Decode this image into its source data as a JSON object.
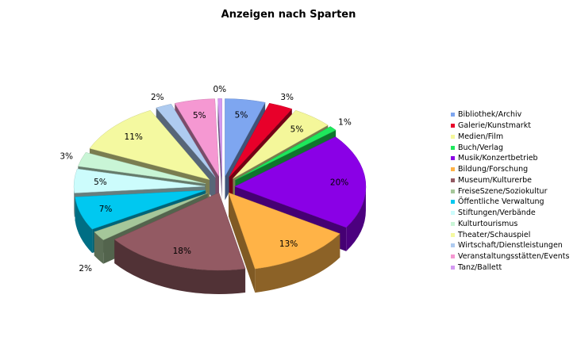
{
  "chart_data": {
    "type": "pie",
    "title": "Anzeigen nach Sparten",
    "legend_position": "right",
    "slices": [
      {
        "label": "Bibliothek/Archiv",
        "value": 5,
        "display": "5%",
        "color": "#7ea6f0"
      },
      {
        "label": "Galerie/Kunstmarkt",
        "value": 3,
        "display": "3%",
        "color": "#e8002a"
      },
      {
        "label": "Medien/Film",
        "value": 5,
        "display": "5%",
        "color": "#f4f79a"
      },
      {
        "label": "Buch/Verlag",
        "value": 1,
        "display": "1%",
        "color": "#1ee85c"
      },
      {
        "label": "Musik/Konzertbetrieb",
        "value": 20,
        "display": "20%",
        "color": "#8a00e6"
      },
      {
        "label": "Bildung/Forschung",
        "value": 13,
        "display": "13%",
        "color": "#ffb347"
      },
      {
        "label": "Museum/Kulturerbe",
        "value": 18,
        "display": "18%",
        "color": "#935a63"
      },
      {
        "label": "FreiseSzene/Soziokultur",
        "value": 2,
        "display": "2%",
        "color": "#a5c79a"
      },
      {
        "label": "Öffentliche Verwaltung",
        "value": 7,
        "display": "7%",
        "color": "#00c8f0"
      },
      {
        "label": "Stiftungen/Verbände",
        "value": 5,
        "display": "5%",
        "color": "#ccfcfc"
      },
      {
        "label": "Kulturtourismus",
        "value": 3,
        "display": "3%",
        "color": "#c9f5d6"
      },
      {
        "label": "Theater/Schauspiel",
        "value": 11,
        "display": "11%",
        "color": "#f4f9a0"
      },
      {
        "label": "Wirtschaft/Dienstleistungen",
        "value": 2,
        "display": "2%",
        "color": "#aecbf0"
      },
      {
        "label": "Veranstaltungsstätten/Events",
        "value": 5,
        "display": "5%",
        "color": "#f598d2"
      },
      {
        "label": "Tanz/Ballett",
        "value": 0.5,
        "display": "0%",
        "color": "#d49af2"
      }
    ]
  }
}
